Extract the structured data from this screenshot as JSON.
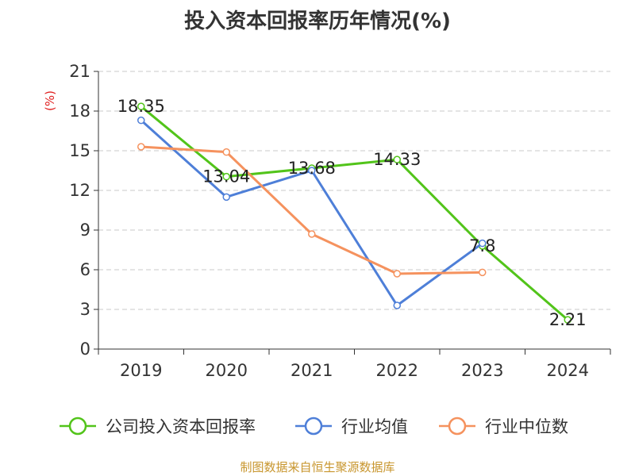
{
  "chart_data": {
    "type": "line",
    "title": "投入资本回报率历年情况(%)",
    "ylabel": "(%)",
    "xlabel": "",
    "categories": [
      "2019",
      "2020",
      "2021",
      "2022",
      "2023",
      "2024"
    ],
    "ylim": [
      0,
      21
    ],
    "yticks": [
      0,
      3,
      6,
      9,
      12,
      15,
      18,
      21
    ],
    "grid": true,
    "legend_position": "bottom",
    "series": [
      {
        "name": "公司投入资本回报率",
        "color": "#52c41a",
        "values": [
          18.35,
          13.04,
          13.68,
          14.33,
          7.8,
          2.21
        ],
        "labels": [
          "18.35",
          "13.04",
          "13.68",
          "14.33",
          "7.8",
          "2.21"
        ]
      },
      {
        "name": "行业均值",
        "color": "#4e7fd8",
        "values": [
          17.3,
          11.5,
          13.5,
          3.3,
          8.0,
          null
        ]
      },
      {
        "name": "行业中位数",
        "color": "#f5925e",
        "values": [
          15.3,
          14.9,
          8.7,
          5.7,
          5.8,
          null
        ]
      }
    ]
  },
  "source": "制图数据来自恒生聚源数据库"
}
